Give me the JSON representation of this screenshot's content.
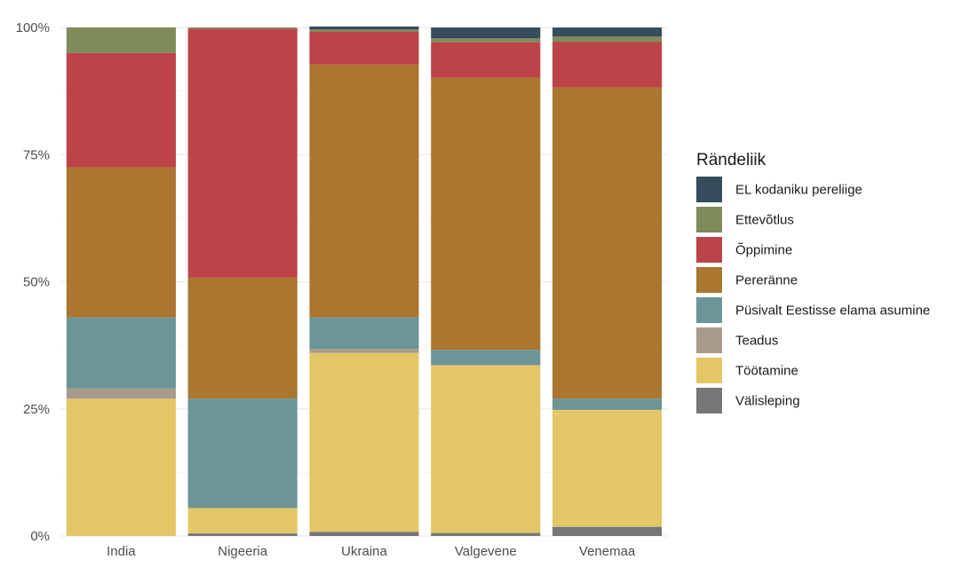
{
  "chart_data": {
    "type": "bar",
    "stacked": true,
    "percent": true,
    "categories": [
      "India",
      "Nigeeria",
      "Ukraina",
      "Valgevene",
      "Venemaa"
    ],
    "ylim": [
      0,
      1
    ],
    "yticks": [
      "0%",
      "25%",
      "50%",
      "75%",
      "100%"
    ],
    "ytick_values": [
      0,
      0.25,
      0.5,
      0.75,
      1.0
    ],
    "grid": true,
    "legend": {
      "title": "Rändeliik",
      "position": "right"
    },
    "series": [
      {
        "name": "Välisleping",
        "color": "#767676",
        "values": [
          0.0,
          0.005,
          0.008,
          0.006,
          0.018
        ]
      },
      {
        "name": "Töötamine",
        "color": "#E3C767",
        "values": [
          0.27,
          0.05,
          0.352,
          0.33,
          0.23
        ]
      },
      {
        "name": "Teadus",
        "color": "#A89B8C",
        "values": [
          0.02,
          0.0,
          0.008,
          0.0,
          0.0
        ]
      },
      {
        "name": "Püsivalt Eestisse elama asumine",
        "color": "#6B9597",
        "values": [
          0.14,
          0.215,
          0.062,
          0.03,
          0.022
        ]
      },
      {
        "name": "Pereränne",
        "color": "#AA7630",
        "values": [
          0.295,
          0.238,
          0.497,
          0.535,
          0.612
        ]
      },
      {
        "name": "Õppimine",
        "color": "#BC4448",
        "values": [
          0.225,
          0.49,
          0.065,
          0.07,
          0.09
        ]
      },
      {
        "name": "Ettevõtlus",
        "color": "#7F8B5A",
        "values": [
          0.05,
          0.002,
          0.004,
          0.008,
          0.01
        ]
      },
      {
        "name": "EL kodaniku pereliige",
        "color": "#354D5C",
        "values": [
          0.0,
          0.0,
          0.006,
          0.021,
          0.018
        ]
      }
    ],
    "legend_order": [
      "EL kodaniku pereliige",
      "Ettevõtlus",
      "Õppimine",
      "Pereränne",
      "Püsivalt Eestisse elama asumine",
      "Teadus",
      "Töötamine",
      "Välisleping"
    ]
  }
}
